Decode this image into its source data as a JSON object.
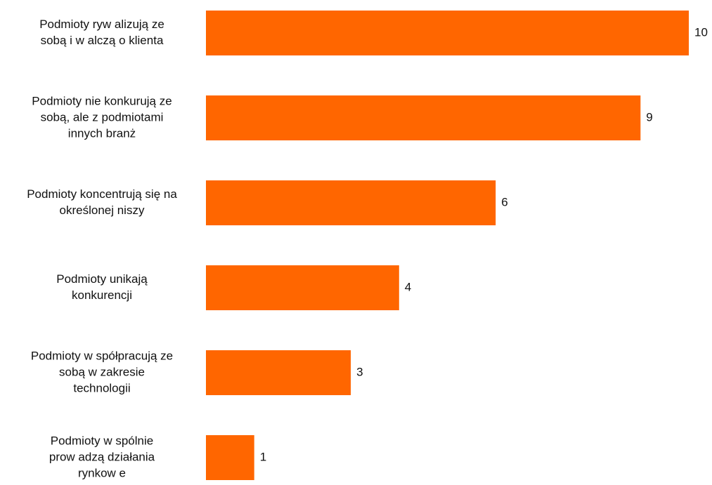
{
  "chart_data": {
    "type": "bar",
    "orientation": "horizontal",
    "title": "",
    "xlabel": "",
    "ylabel": "",
    "categories": [
      [
        "Podmioty ryw alizują ze",
        "sobą i w alczą o klienta"
      ],
      [
        "Podmioty nie konkurują ze",
        "sobą, ale z podmiotami",
        "innych branż"
      ],
      [
        "Podmioty koncentrują się na",
        "określonej niszy"
      ],
      [
        "Podmioty unikają",
        "konkurencji"
      ],
      [
        "Podmioty w spółpracują ze",
        "sobą w  zakresie",
        "technologii"
      ],
      [
        "Podmioty w spólnie",
        "prow adzą działania",
        "rynkow e"
      ]
    ],
    "values": [
      10,
      9,
      6,
      4,
      3,
      1
    ],
    "xlim": [
      0,
      10
    ],
    "grid": false,
    "legend": "none",
    "bar_color": "#ff6600",
    "data_labels": true
  }
}
